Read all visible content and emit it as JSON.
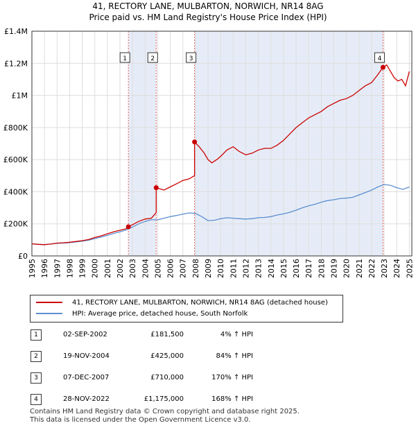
{
  "title_line1": "41, RECTORY LANE, MULBARTON, NORWICH, NR14 8AG",
  "title_line2": "Price paid vs. HM Land Registry's House Price Index (HPI)",
  "colors": {
    "property": "#cc0000",
    "hpi": "#5b8fd0",
    "shade": "#e6ecf7",
    "vline": "#e06060",
    "grid": "#dddddd"
  },
  "chart_data": {
    "type": "line",
    "title": "Price paid vs. HM Land Registry's House Price Index (HPI)",
    "xlim": [
      1995,
      2025.2
    ],
    "ylim": [
      0,
      1400000
    ],
    "y_ticks": [
      0,
      200000,
      400000,
      600000,
      800000,
      1000000,
      1200000,
      1400000
    ],
    "y_tick_labels": [
      "£0",
      "£200K",
      "£400K",
      "£600K",
      "£800K",
      "£1M",
      "£1.2M",
      "£1.4M"
    ],
    "x_ticks": [
      1995,
      1996,
      1997,
      1998,
      1999,
      2000,
      2001,
      2002,
      2003,
      2004,
      2005,
      2006,
      2007,
      2008,
      2009,
      2010,
      2011,
      2012,
      2013,
      2014,
      2015,
      2016,
      2017,
      2018,
      2019,
      2020,
      2021,
      2022,
      2023,
      2024,
      2025
    ],
    "x_tick_labels": [
      "1995",
      "1996",
      "1997",
      "1998",
      "1999",
      "2000",
      "2001",
      "2002",
      "2003",
      "2004",
      "2005",
      "2006",
      "2007",
      "2008",
      "2009",
      "2010",
      "2011",
      "2012",
      "2013",
      "2014",
      "2015",
      "2016",
      "2017",
      "2018",
      "2019",
      "2020",
      "2021",
      "2022",
      "2023",
      "2024",
      "2025"
    ],
    "shaded_ranges": [
      [
        2002.67,
        2004.88
      ],
      [
        2007.93,
        2022.91
      ]
    ],
    "series": [
      {
        "name": "41, RECTORY LANE, MULBARTON, NORWICH, NR14 8AG (detached house)",
        "x": [
          1995.0,
          1995.5,
          1996.0,
          1996.5,
          1997.0,
          1997.5,
          1998.0,
          1998.5,
          1999.0,
          1999.5,
          2000.0,
          2000.5,
          2001.0,
          2001.5,
          2002.0,
          2002.5,
          2002.67,
          2003.0,
          2003.5,
          2004.0,
          2004.5,
          2004.88,
          2004.88,
          2005.5,
          2006.0,
          2006.5,
          2007.0,
          2007.5,
          2007.93,
          2007.93,
          2008.3,
          2008.7,
          2009.0,
          2009.3,
          2009.7,
          2010.0,
          2010.5,
          2011.0,
          2011.5,
          2012.0,
          2012.5,
          2013.0,
          2013.5,
          2014.0,
          2014.5,
          2015.0,
          2015.5,
          2016.0,
          2016.5,
          2017.0,
          2017.5,
          2018.0,
          2018.5,
          2019.0,
          2019.5,
          2020.0,
          2020.5,
          2021.0,
          2021.5,
          2022.0,
          2022.5,
          2022.91,
          2022.91,
          2023.2,
          2023.5,
          2023.8,
          2024.1,
          2024.4,
          2024.7,
          2025.0
        ],
        "values": [
          75000,
          72000,
          70000,
          74000,
          80000,
          82000,
          85000,
          90000,
          95000,
          102000,
          115000,
          125000,
          138000,
          150000,
          160000,
          170000,
          181500,
          195000,
          215000,
          230000,
          235000,
          270000,
          425000,
          410000,
          430000,
          450000,
          470000,
          480000,
          500000,
          710000,
          680000,
          640000,
          600000,
          580000,
          600000,
          620000,
          660000,
          680000,
          650000,
          630000,
          640000,
          660000,
          670000,
          670000,
          690000,
          720000,
          760000,
          800000,
          830000,
          860000,
          880000,
          900000,
          930000,
          950000,
          970000,
          980000,
          1000000,
          1030000,
          1060000,
          1080000,
          1130000,
          1175000,
          1175000,
          1190000,
          1150000,
          1110000,
          1090000,
          1100000,
          1060000,
          1150000
        ]
      },
      {
        "name": "HPI: Average price, detached house, South Norfolk",
        "x": [
          1995.0,
          1995.5,
          1996.0,
          1996.5,
          1997.0,
          1997.5,
          1998.0,
          1998.5,
          1999.0,
          1999.5,
          2000.0,
          2000.5,
          2001.0,
          2001.5,
          2002.0,
          2002.5,
          2003.0,
          2003.5,
          2004.0,
          2004.5,
          2005.0,
          2005.5,
          2006.0,
          2006.5,
          2007.0,
          2007.5,
          2008.0,
          2008.5,
          2009.0,
          2009.5,
          2010.0,
          2010.5,
          2011.0,
          2011.5,
          2012.0,
          2012.5,
          2013.0,
          2013.5,
          2014.0,
          2014.5,
          2015.0,
          2015.5,
          2016.0,
          2016.5,
          2017.0,
          2017.5,
          2018.0,
          2018.5,
          2019.0,
          2019.5,
          2020.0,
          2020.5,
          2021.0,
          2021.5,
          2022.0,
          2022.5,
          2023.0,
          2023.5,
          2024.0,
          2024.5,
          2025.0
        ],
        "values": [
          75000,
          72000,
          71000,
          74000,
          78000,
          80000,
          83000,
          87000,
          92000,
          98000,
          108000,
          118000,
          128000,
          140000,
          150000,
          162000,
          180000,
          200000,
          215000,
          225000,
          225000,
          235000,
          245000,
          252000,
          260000,
          268000,
          265000,
          245000,
          220000,
          222000,
          232000,
          238000,
          235000,
          232000,
          230000,
          232000,
          238000,
          240000,
          245000,
          255000,
          262000,
          272000,
          285000,
          300000,
          312000,
          322000,
          335000,
          345000,
          350000,
          358000,
          360000,
          365000,
          380000,
          395000,
          410000,
          430000,
          445000,
          440000,
          425000,
          415000,
          430000
        ]
      }
    ],
    "sales": [
      {
        "label": "1",
        "x": 2002.67,
        "value": 181500
      },
      {
        "label": "2",
        "x": 2004.88,
        "value": 425000
      },
      {
        "label": "3",
        "x": 2007.93,
        "value": 710000
      },
      {
        "label": "4",
        "x": 2022.91,
        "value": 1175000
      }
    ]
  },
  "legend": {
    "property_label": "41, RECTORY LANE, MULBARTON, NORWICH, NR14 8AG (detached house)",
    "hpi_label": "HPI: Average price, detached house, South Norfolk"
  },
  "sales_table": [
    {
      "num": "1",
      "date": "02-SEP-2002",
      "price": "£181,500",
      "hpi": "4% ↑ HPI"
    },
    {
      "num": "2",
      "date": "19-NOV-2004",
      "price": "£425,000",
      "hpi": "84% ↑ HPI"
    },
    {
      "num": "3",
      "date": "07-DEC-2007",
      "price": "£710,000",
      "hpi": "170% ↑ HPI"
    },
    {
      "num": "4",
      "date": "28-NOV-2022",
      "price": "£1,175,000",
      "hpi": "168% ↑ HPI"
    }
  ],
  "footer_line1": "Contains HM Land Registry data © Crown copyright and database right 2025.",
  "footer_line2": "This data is licensed under the Open Government Licence v3.0."
}
